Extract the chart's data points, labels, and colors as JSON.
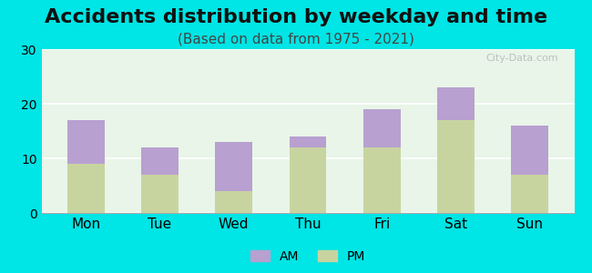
{
  "title": "Accidents distribution by weekday and time",
  "subtitle": "(Based on data from 1975 - 2021)",
  "categories": [
    "Mon",
    "Tue",
    "Wed",
    "Thu",
    "Fri",
    "Sat",
    "Sun"
  ],
  "pm_values": [
    9,
    7,
    4,
    12,
    12,
    17,
    7
  ],
  "am_values": [
    8,
    5,
    9,
    2,
    7,
    6,
    9
  ],
  "am_color": "#b8a0d0",
  "pm_color": "#c8d4a0",
  "background_color": "#00e5e5",
  "plot_bg_start": "#e8f5e8",
  "plot_bg_end": "#f5fff5",
  "ylim": [
    0,
    30
  ],
  "yticks": [
    0,
    10,
    20,
    30
  ],
  "legend_am": "AM",
  "legend_pm": "PM",
  "title_fontsize": 16,
  "subtitle_fontsize": 11,
  "watermark": "City-Data.com"
}
